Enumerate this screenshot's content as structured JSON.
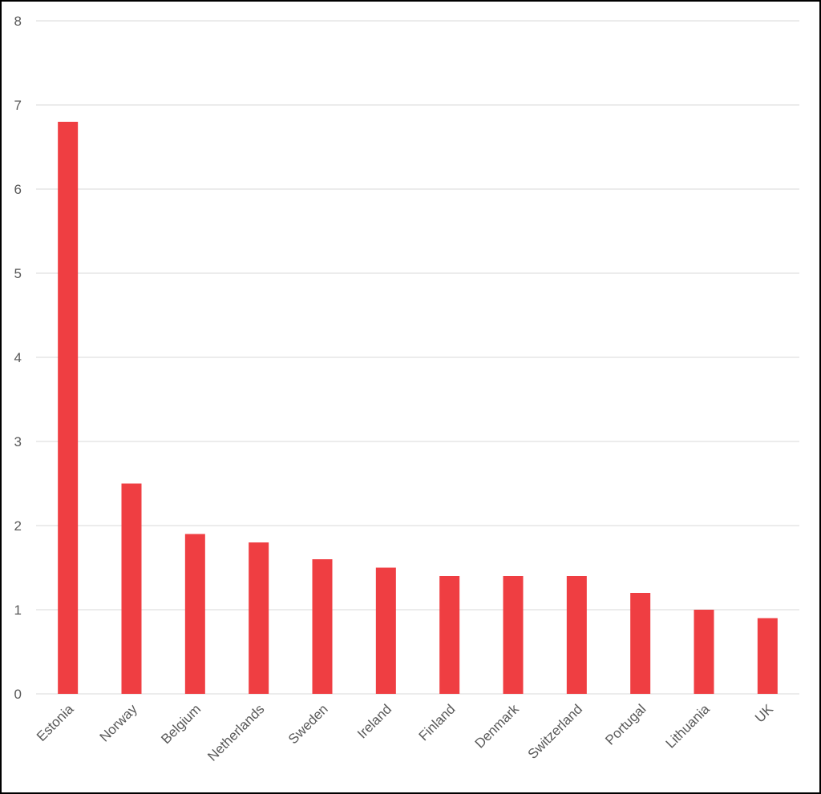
{
  "chart_data": {
    "type": "bar",
    "title": "",
    "xlabel": "",
    "ylabel": "",
    "categories": [
      "Estonia",
      "Norway",
      "Belgium",
      "Netherlands",
      "Sweden",
      "Ireland",
      "Finland",
      "Denmark",
      "Switzerland",
      "Portugal",
      "Lithuania",
      "UK"
    ],
    "values": [
      6.8,
      2.5,
      1.9,
      1.8,
      1.6,
      1.5,
      1.4,
      1.4,
      1.4,
      1.2,
      1.0,
      0.9
    ],
    "ylim": [
      0,
      8
    ],
    "yticks": [
      0,
      1,
      2,
      3,
      4,
      5,
      6,
      7,
      8
    ],
    "grid": true,
    "legend": "none",
    "bar_color": "#EF3E42",
    "grid_color": "#D9D9D9",
    "text_color": "#595959"
  }
}
